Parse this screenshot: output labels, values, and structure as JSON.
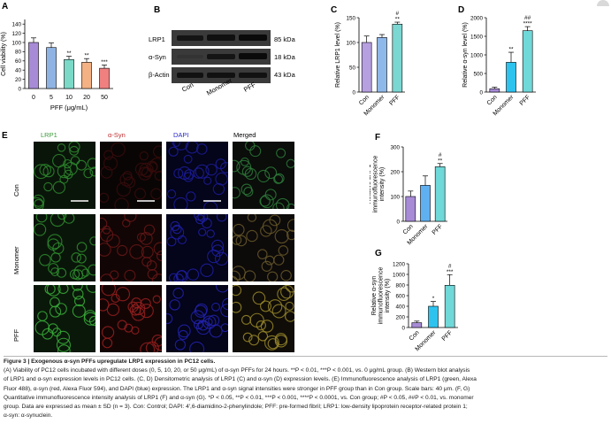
{
  "panel_labels": {
    "A": "A",
    "B": "B",
    "C": "C",
    "D": "D",
    "E": "E",
    "F": "F",
    "G": "G"
  },
  "western_blot": {
    "bands": [
      "LRP1",
      "α-Syn",
      "β-Actin"
    ],
    "sizes": [
      "85 kDa",
      "18 kDa",
      "43 kDa"
    ],
    "lanes": [
      "Con",
      "Monomer",
      "PFF"
    ]
  },
  "if_panel": {
    "columns": [
      "LRP1",
      "α-Syn",
      "DAPI",
      "Merged"
    ],
    "rows": [
      "Con",
      "Monomer",
      "PFF"
    ],
    "column_colors": [
      "#3a9a3a",
      "#c03030",
      "#2a2ac8",
      "#222222"
    ]
  },
  "chart_data": [
    {
      "panel": "A",
      "type": "bar",
      "categories": [
        "0",
        "5",
        "10",
        "20",
        "50"
      ],
      "values": [
        100,
        89,
        63,
        57,
        44
      ],
      "errors": [
        10,
        10,
        7,
        8,
        7
      ],
      "annotations": [
        "",
        "",
        "**",
        "**",
        "***"
      ],
      "colors": [
        "#a78bd6",
        "#8fb3e3",
        "#7bd9c8",
        "#f4b183",
        "#f08080"
      ],
      "xlabel": "PFF (μg/mL)",
      "ylabel": "Cell viability (%)",
      "ylim": [
        0,
        150
      ],
      "yticks": [
        0,
        20,
        40,
        60,
        80,
        100,
        120,
        140
      ]
    },
    {
      "panel": "C",
      "type": "bar",
      "categories": [
        "Con",
        "Monomer",
        "PFF"
      ],
      "values": [
        100,
        110,
        137
      ],
      "errors": [
        13,
        6,
        4
      ],
      "annotations": [
        "",
        "",
        "**"
      ],
      "annotations2": [
        "",
        "",
        "#"
      ],
      "colors": [
        "#b6a0e0",
        "#8fb8ea",
        "#7ad7d2"
      ],
      "ylabel": "Relative LRP1 level (%)",
      "ylim": [
        0,
        150
      ],
      "yticks": [
        0,
        50,
        100,
        150
      ]
    },
    {
      "panel": "D",
      "type": "bar",
      "categories": [
        "Con",
        "Monomer",
        "PFF"
      ],
      "values": [
        90,
        800,
        1650
      ],
      "errors": [
        40,
        270,
        110
      ],
      "annotations": [
        "",
        "**",
        "****"
      ],
      "annotations2": [
        "",
        "",
        "##"
      ],
      "colors": [
        "#a78bd6",
        "#2ec3ef",
        "#6fd8d8"
      ],
      "ylabel": "Relative α-syn level (%)",
      "ylim": [
        0,
        2000
      ],
      "yticks": [
        0,
        500,
        1000,
        1500,
        2000
      ]
    },
    {
      "panel": "F",
      "type": "bar",
      "categories": [
        "Con",
        "Monomer",
        "PFF"
      ],
      "values": [
        100,
        145,
        220
      ],
      "errors": [
        22,
        38,
        13
      ],
      "annotations": [
        "",
        "",
        "**"
      ],
      "annotations2": [
        "",
        "",
        "#"
      ],
      "colors": [
        "#a78bd6",
        "#5fb0f0",
        "#6fd8d8"
      ],
      "ylabel": "Relative LRP1 immunofluorescence intensity (%)",
      "ylim": [
        0,
        300
      ],
      "yticks": [
        0,
        100,
        200,
        300
      ]
    },
    {
      "panel": "G",
      "type": "bar",
      "categories": [
        "Con",
        "Monomer",
        "PFF"
      ],
      "values": [
        90,
        400,
        795
      ],
      "errors": [
        30,
        90,
        200
      ],
      "annotations": [
        "",
        "*",
        "***"
      ],
      "annotations2": [
        "",
        "",
        "#"
      ],
      "colors": [
        "#a78bd6",
        "#2ec3ef",
        "#6fd8d8"
      ],
      "ylabel": "Relative α-syn immunofluorescence intensity (%)",
      "ylim": [
        0,
        1200
      ],
      "yticks": [
        0,
        200,
        400,
        600,
        800,
        1000,
        1200
      ]
    }
  ],
  "caption": {
    "title": "Figure 3 | Exogenous α-syn PFFs upregulate LRP1 expression in PC12 cells.",
    "lines": [
      "(A) Viability of PC12 cells incubated with different doses (0, 5, 10, 20, or 50 μg/mL) of α-syn PFFs for 24 hours. **P < 0.01, ***P < 0.001, vs. 0 μg/mL group. (B) Western blot analysis",
      "of LRP1 and α-syn expression levels in PC12 cells. (C, D) Densitometric analysis of LRP1 (C) and α-syn (D) expression levels. (E) Immunofluorescence analysis of LRP1 (green, Alexa",
      "Fluor 488), α-syn (red, Alexa Fluor 594), and DAPI (blue) expression. The LRP1 and α-syn signal intensities were stronger in PFF group than in Con group. Scale bars: 40 μm. (F, G)",
      "Quantitative immunofluorescence intensity analysis of LRP1 (F) and α-syn (G). *P < 0.05, **P < 0.01, ***P < 0.001, ****P < 0.0001, vs. Con group; #P < 0.05, ##P < 0.01, vs. monomer",
      "group. Data are expressed as mean ± SD (n = 3). Con: Control; DAPI: 4′,6-diamidino-2-phenylindole; PFF: pre-formed fibril; LRP1: low-density lipoprotein receptor-related protein 1;",
      "α-syn: α-synuclein."
    ]
  }
}
